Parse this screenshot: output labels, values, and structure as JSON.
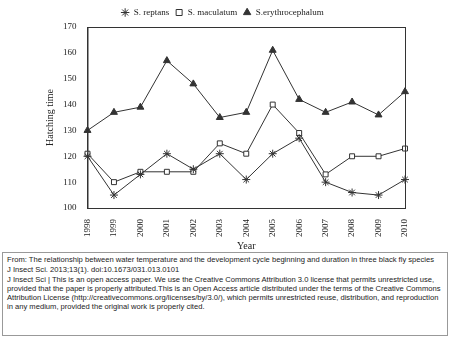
{
  "chart_data": {
    "type": "line",
    "categories": [
      "1998",
      "1999",
      "2000",
      "2001",
      "2002",
      "2003",
      "2004",
      "2005",
      "2006",
      "2007",
      "2008",
      "2009",
      "2010"
    ],
    "x_label": "Year",
    "y_label": "Hatching time",
    "series": [
      {
        "name": "S. reptans",
        "color": "#333333",
        "marker": "asterisk",
        "values": [
          120,
          105,
          113,
          121,
          115,
          121,
          111,
          121,
          127,
          110,
          106,
          105,
          111
        ]
      },
      {
        "name": "S. maculatum",
        "color": "#333333",
        "marker": "open_square",
        "values": [
          121,
          110,
          114,
          114,
          114,
          125,
          121,
          140,
          129,
          113,
          120,
          120,
          123
        ]
      },
      {
        "name": "S.erythrocephalum",
        "color": "#333333",
        "marker": "triangle",
        "values": [
          130,
          137,
          139,
          157,
          148,
          135,
          137,
          161,
          142,
          137,
          141,
          136,
          145
        ]
      }
    ],
    "ylim": [
      100,
      170
    ],
    "yticks": [
      100,
      110,
      120,
      130,
      140,
      150,
      160,
      170
    ],
    "grid": false,
    "legend": "top"
  },
  "caption": {
    "source": "From: The relationship between water temperature and the development cycle beginning and duration in three black fly species",
    "citation": "J Insect Sci. 2013;13(1). doi:10.1673/031.013.0101",
    "license": "J Insect Sci | This is an open access paper. We use the Creative Commons Attribution 3.0 license that permits unrestricted use, provided that the paper is properly attributed.This is an Open Access article distributed under the terms of the Creative Commons Attribution License (http://creativecommons.org/licenses/by/3.0/), which permits unrestricted reuse, distribution, and reproduction in any medium, provided the original work is properly cited."
  }
}
